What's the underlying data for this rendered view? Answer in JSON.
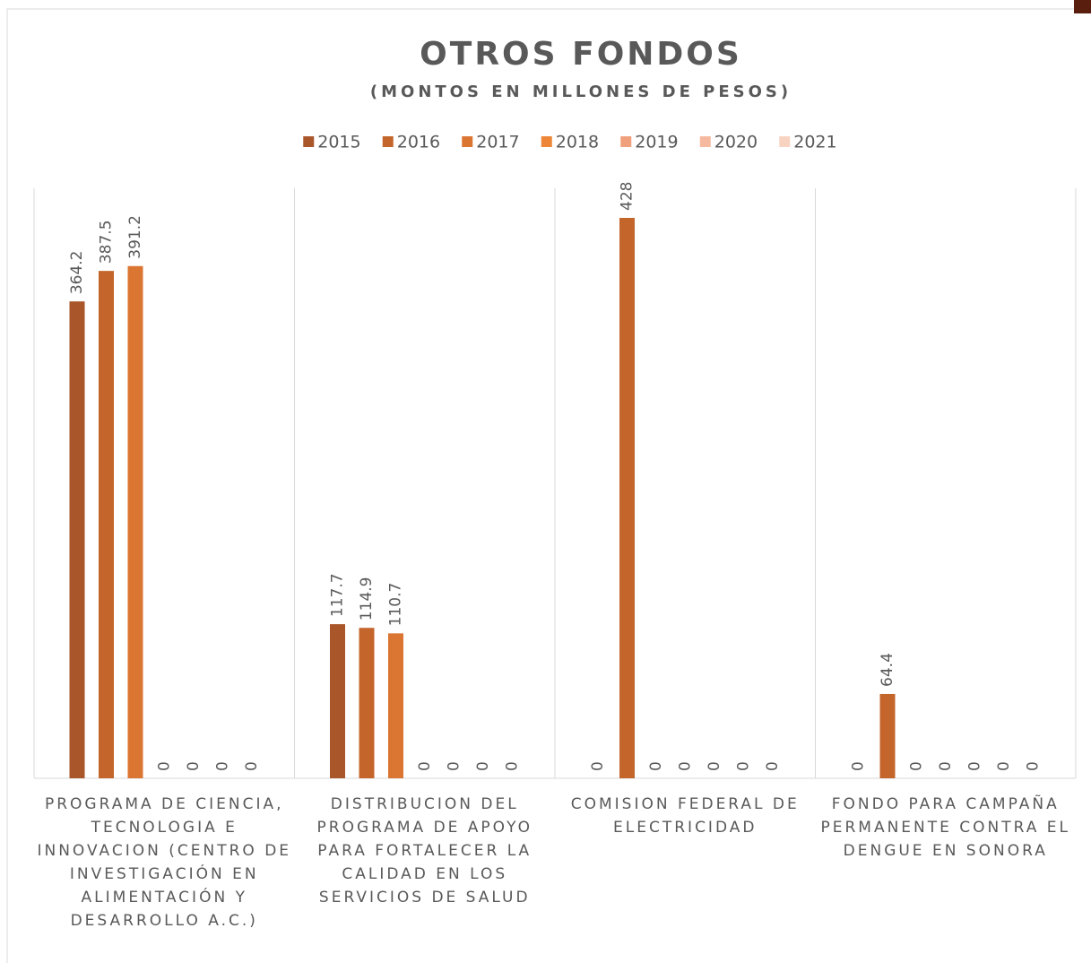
{
  "chart_data": {
    "type": "bar",
    "title": "OTROS FONDOS",
    "subtitle": "(MONTOS EN MILLONES DE PESOS)",
    "categories": [
      "PROGRAMA DE CIENCIA, TECNOLOGIA E INNOVACION (CENTRO DE INVESTIGACIÓN EN ALIMENTACIÓN Y DESARROLLO A.C.)",
      "DISTRIBUCION DEL PROGRAMA DE APOYO PARA FORTALECER LA CALIDAD EN LOS SERVICIOS DE SALUD",
      "COMISION FEDERAL DE ELECTRICIDAD",
      "FONDO PARA CAMPAÑA PERMANENTE CONTRA EL DENGUE EN SONORA"
    ],
    "series": [
      {
        "name": "2015",
        "color": "#a9562a",
        "values": [
          364.2,
          117.7,
          0,
          0
        ]
      },
      {
        "name": "2016",
        "color": "#c4652c",
        "values": [
          387.5,
          114.9,
          428,
          64.4
        ]
      },
      {
        "name": "2017",
        "color": "#da7532",
        "values": [
          391.2,
          110.7,
          0,
          0
        ]
      },
      {
        "name": "2018",
        "color": "#ee8637",
        "values": [
          0,
          0,
          0,
          0
        ]
      },
      {
        "name": "2019",
        "color": "#f0a07c",
        "values": [
          0,
          0,
          0,
          0
        ]
      },
      {
        "name": "2020",
        "color": "#f5b99f",
        "values": [
          0,
          0,
          0,
          0
        ]
      },
      {
        "name": "2021",
        "color": "#f8d3c2",
        "values": [
          0,
          0,
          0,
          0
        ]
      }
    ],
    "grid": true
  }
}
